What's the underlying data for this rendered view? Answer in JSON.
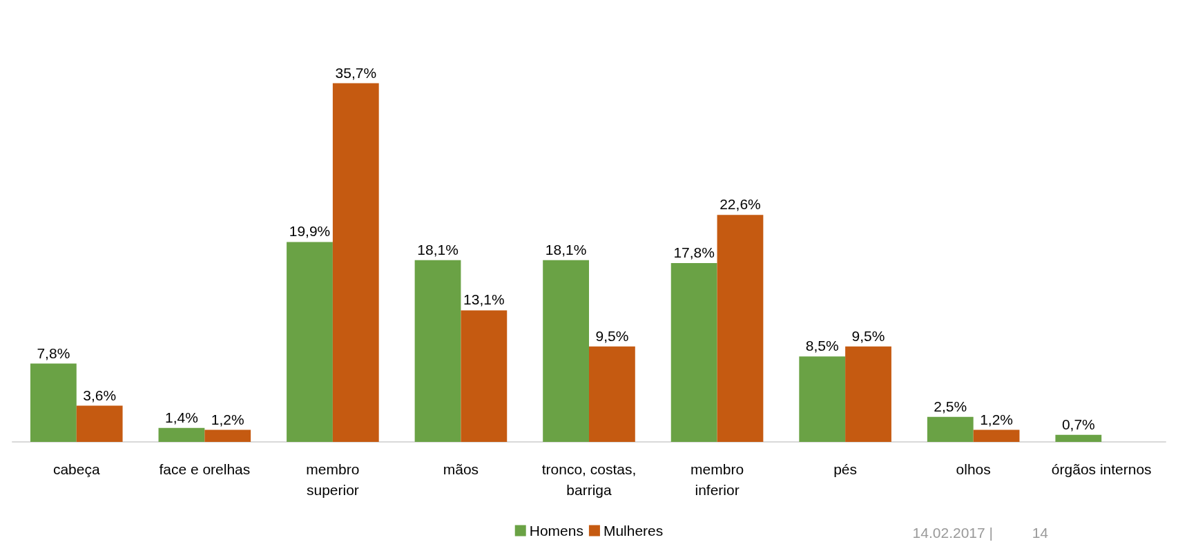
{
  "chart_data": {
    "type": "bar",
    "categories": [
      "cabeça",
      "face e orelhas",
      "membro\nsuperior",
      "mãos",
      "tronco, costas,\nbarriga",
      "membro\ninferior",
      "pés",
      "olhos",
      "órgãos internos"
    ],
    "series": [
      {
        "name": "Homens",
        "color": "#6aa245",
        "values": [
          7.8,
          1.4,
          19.9,
          18.1,
          18.1,
          17.8,
          8.5,
          2.5,
          0.7
        ],
        "value_labels": [
          "7,8%",
          "1,4%",
          "19,9%",
          "18,1%",
          "18,1%",
          "17,8%",
          "8,5%",
          "2,5%",
          "0,7%"
        ]
      },
      {
        "name": "Mulheres",
        "color": "#c55a11",
        "values": [
          3.6,
          1.2,
          35.7,
          13.1,
          9.5,
          22.6,
          9.5,
          1.2,
          null
        ],
        "value_labels": [
          "3,6%",
          "1,2%",
          "35,7%",
          "13,1%",
          "9,5%",
          "22,6%",
          "9,5%",
          "1,2%",
          null
        ]
      }
    ],
    "legend": "bottom",
    "annotations": [
      "14.02.2017 |",
      "14"
    ]
  }
}
